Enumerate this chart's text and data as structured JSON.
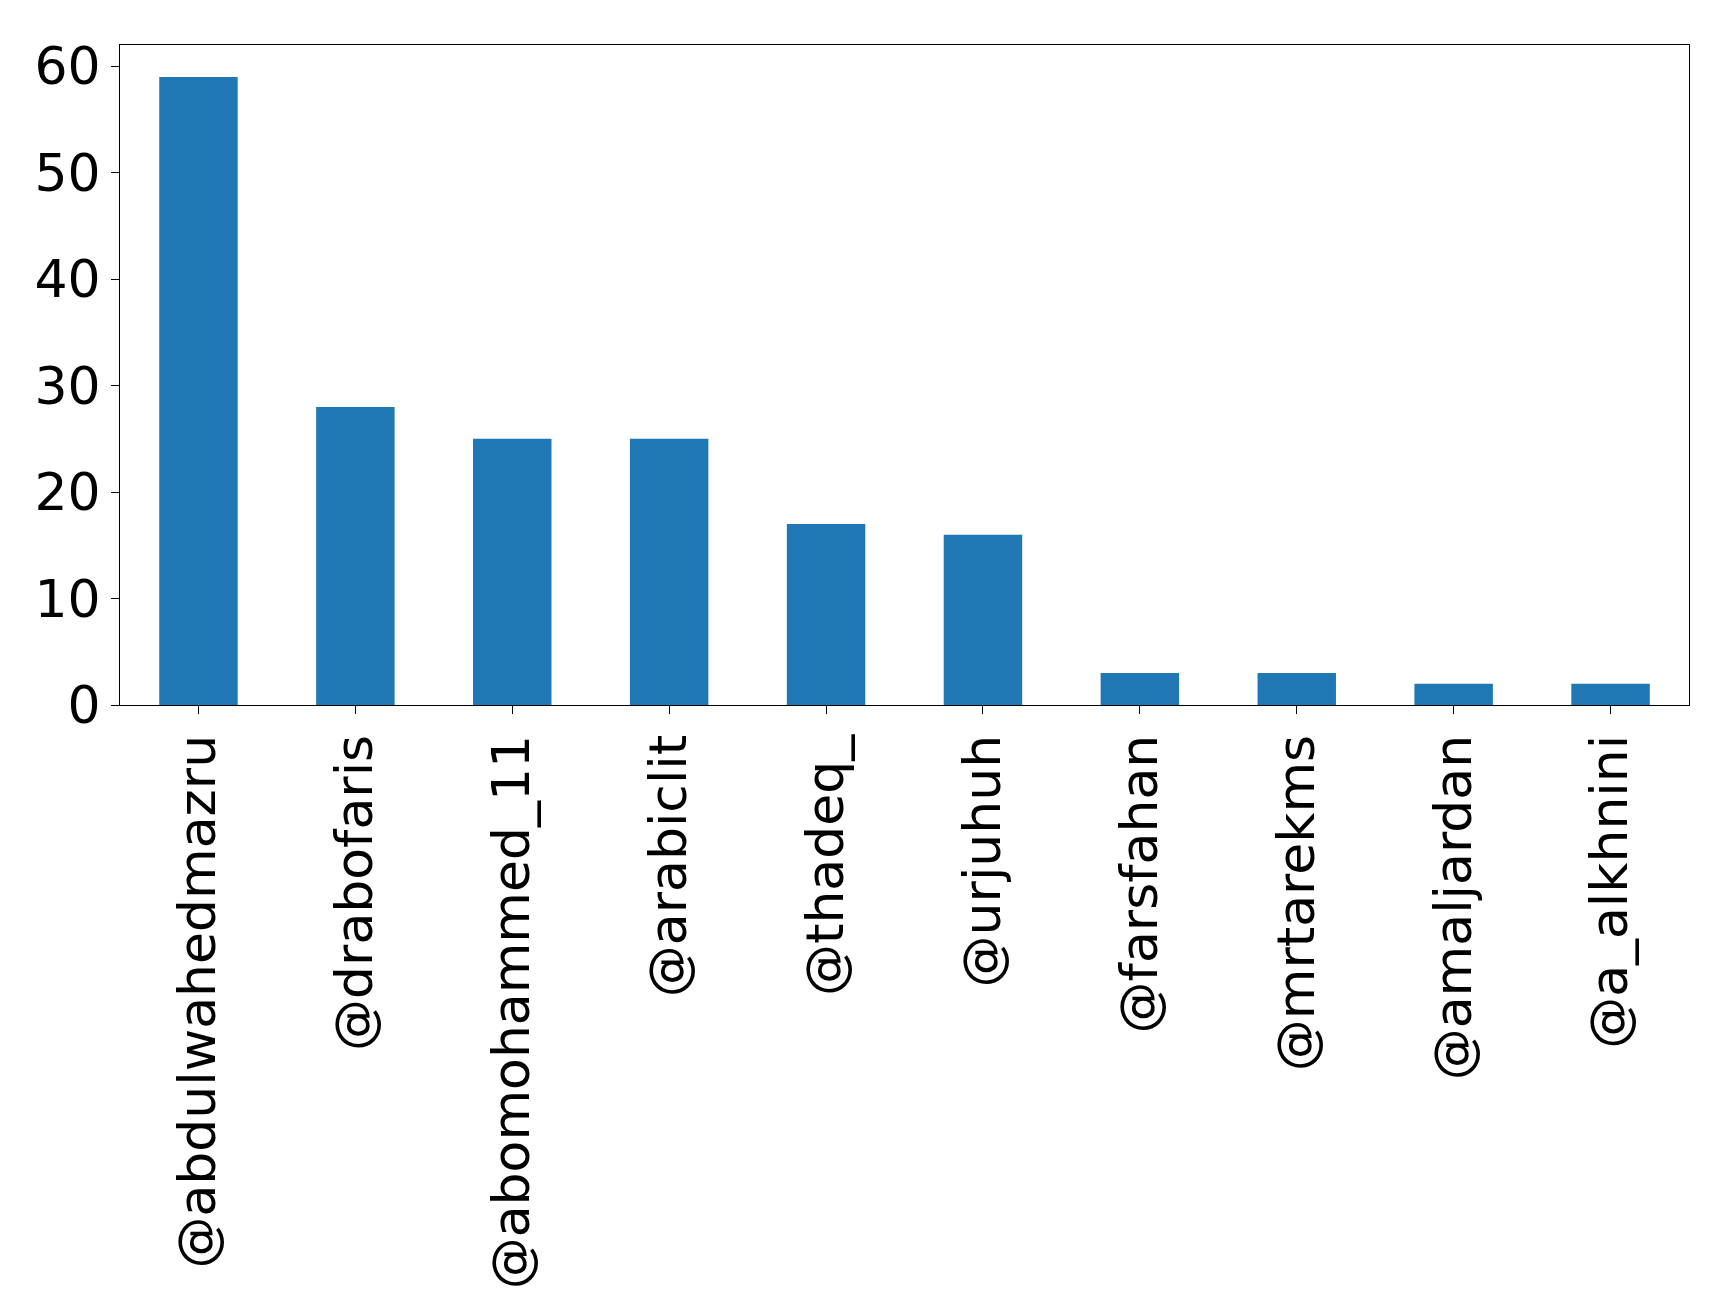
{
  "chart_data": {
    "type": "bar",
    "categories": [
      "@abdulwahedmazru",
      "@drabofaris",
      "@abomohammed_11",
      "@arabiclit",
      "@thadeq_",
      "@urjuhuh",
      "@farsfahan",
      "@mrtarekms",
      "@amaljardan",
      "@a_alkhnini"
    ],
    "values": [
      59,
      28,
      25,
      25,
      17,
      16,
      3,
      3,
      2,
      2
    ],
    "color": "#1f77b4",
    "ylim": [
      0,
      62
    ],
    "yticks": [
      0,
      10,
      20,
      30,
      40,
      50,
      60
    ],
    "legend": false
  }
}
